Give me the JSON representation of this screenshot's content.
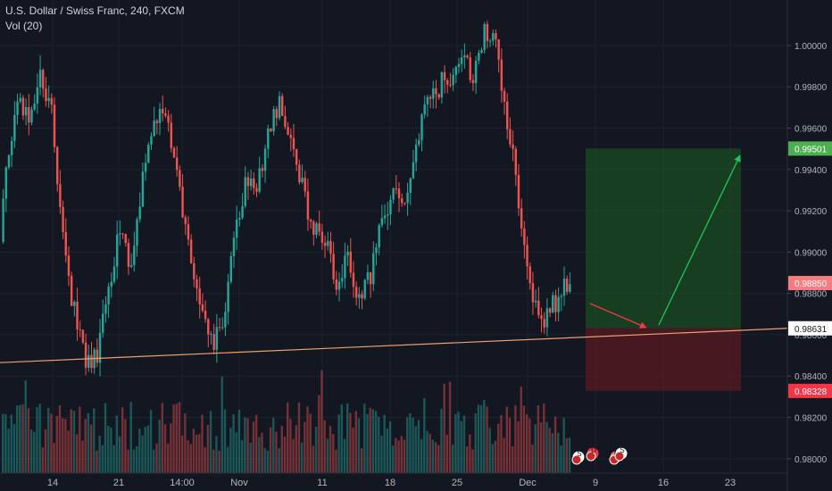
{
  "header": {
    "symbol_title": "U.S. Dollar / Swiss Franc, 240, FXCM",
    "indicator": "Vol (20)"
  },
  "colors": {
    "background": "#131722",
    "grid": "#1e222d",
    "axis_text": "#b2b5be",
    "up": "#26a69a",
    "down": "#ef5350",
    "trendline": "#f0a070",
    "target_zone": "#1b5e20",
    "stop_zone": "#5d1a1f",
    "arrow_red": "#f23645",
    "arrow_green": "#22c55e",
    "badge_green": "#4caf50",
    "badge_red": "#f23645",
    "badge_pink": "#f77c80",
    "badge_white": "#ffffff"
  },
  "chart_data": {
    "type": "candlestick",
    "symbol": "USDCHF",
    "x_tick_labels": [
      "14",
      "21",
      "14:00",
      "Nov",
      "11",
      "18",
      "25",
      "Dec",
      "9",
      "16",
      "23"
    ],
    "y_tick_labels": [
      "1.00000",
      "0.99800",
      "0.99600",
      "0.99400",
      "0.99200",
      "0.99000",
      "0.98800",
      "0.98600",
      "0.98400",
      "0.98200",
      "0.98000"
    ],
    "y_ticks": [
      1.0,
      0.998,
      0.996,
      0.994,
      0.992,
      0.99,
      0.988,
      0.986,
      0.984,
      0.982,
      0.98
    ],
    "ylim": [
      0.9793,
      1.0022
    ],
    "price_path": [
      [
        0,
        0.9905
      ],
      [
        2,
        0.9935
      ],
      [
        6,
        0.9978
      ],
      [
        10,
        0.9965
      ],
      [
        14,
        0.999
      ],
      [
        18,
        0.9968
      ],
      [
        22,
        0.9908
      ],
      [
        26,
        0.987
      ],
      [
        30,
        0.9845
      ],
      [
        34,
        0.985
      ],
      [
        38,
        0.9885
      ],
      [
        42,
        0.991
      ],
      [
        46,
        0.9895
      ],
      [
        50,
        0.9935
      ],
      [
        54,
        0.9965
      ],
      [
        58,
        0.9968
      ],
      [
        62,
        0.994
      ],
      [
        66,
        0.9905
      ],
      [
        70,
        0.987
      ],
      [
        74,
        0.9855
      ],
      [
        78,
        0.9865
      ],
      [
        82,
        0.9905
      ],
      [
        86,
        0.9935
      ],
      [
        90,
        0.9932
      ],
      [
        94,
        0.9958
      ],
      [
        98,
        0.9972
      ],
      [
        102,
        0.9955
      ],
      [
        106,
        0.993
      ],
      [
        110,
        0.9912
      ],
      [
        114,
        0.9905
      ],
      [
        118,
        0.9885
      ],
      [
        122,
        0.9895
      ],
      [
        126,
        0.9875
      ],
      [
        130,
        0.989
      ],
      [
        134,
        0.9915
      ],
      [
        138,
        0.993
      ],
      [
        142,
        0.9925
      ],
      [
        146,
        0.995
      ],
      [
        150,
        0.9972
      ],
      [
        154,
        0.998
      ],
      [
        158,
        0.9985
      ],
      [
        162,
        0.9995
      ],
      [
        166,
        0.9985
      ],
      [
        170,
        1.0005
      ],
      [
        174,
        1.0
      ],
      [
        178,
        0.9965
      ],
      [
        182,
        0.9925
      ],
      [
        186,
        0.9885
      ],
      [
        190,
        0.9865
      ],
      [
        194,
        0.9875
      ],
      [
        198,
        0.9882
      ],
      [
        200,
        0.9885
      ]
    ],
    "last_price": 0.9885,
    "position": {
      "target_price": 0.99501,
      "entry_price": 0.98631,
      "stop_price": 0.98328,
      "target_label": "0.99501",
      "entry_label": "0.98631",
      "last_label": "0.98850",
      "stop_label": "0.98328"
    },
    "trendline": {
      "start_price": 0.98465,
      "end_price": 0.98631
    },
    "volume_indicator": "Vol (20)",
    "grid": true,
    "event_badges": [
      {
        "label": "S",
        "color": "badge_white"
      },
      {
        "label": "D",
        "color": "badge_red"
      },
      {
        "label": "D",
        "color": "badge_pink"
      },
      {
        "label": "S",
        "color": "badge_white"
      }
    ]
  }
}
